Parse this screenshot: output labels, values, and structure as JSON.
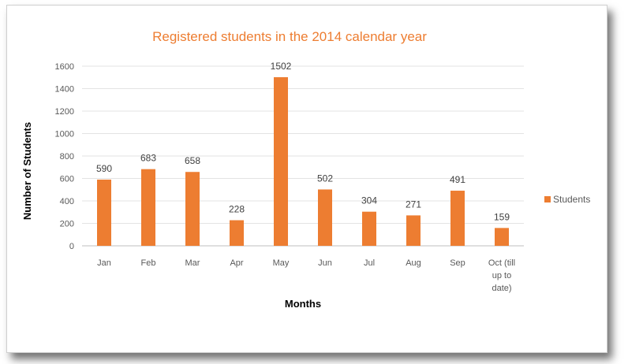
{
  "chart_data": {
    "type": "bar",
    "title": "Registered students in the 2014 calendar year",
    "xlabel": "Months",
    "ylabel": "Number of Students",
    "categories": [
      "Jan",
      "Feb",
      "Mar",
      "Apr",
      "May",
      "Jun",
      "Jul",
      "Aug",
      "Sep",
      "Oct (till up to date)"
    ],
    "category_lines": [
      [
        "Jan"
      ],
      [
        "Feb"
      ],
      [
        "Mar"
      ],
      [
        "Apr"
      ],
      [
        "May"
      ],
      [
        "Jun"
      ],
      [
        "Jul"
      ],
      [
        "Aug"
      ],
      [
        "Sep"
      ],
      [
        "Oct (till",
        "up to",
        "date)"
      ]
    ],
    "series": [
      {
        "name": "Students",
        "values": [
          590,
          683,
          658,
          228,
          1502,
          502,
          304,
          271,
          491,
          159
        ],
        "color": "#ED7D31"
      }
    ],
    "ylim": [
      0,
      1600
    ],
    "yticks": [
      0,
      200,
      400,
      600,
      800,
      1000,
      1200,
      1400,
      1600
    ],
    "grid": true,
    "legend_position": "right",
    "data_labels": true
  }
}
